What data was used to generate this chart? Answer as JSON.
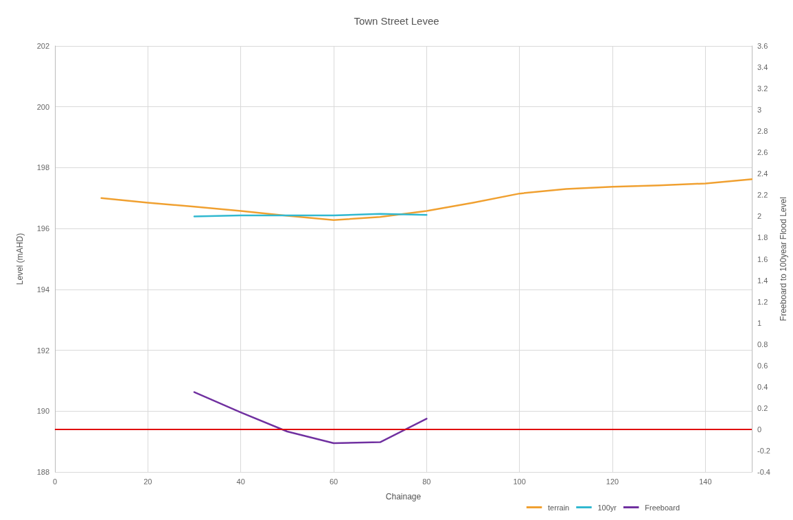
{
  "chart_data": {
    "type": "line",
    "title": "Town Street Levee",
    "xlabel": "Chainage",
    "ylabel": "Level (mAHD)",
    "y2label": "Freeboard to 100year Flood Level",
    "xlim": [
      0,
      150
    ],
    "xticks": [
      0,
      20,
      40,
      60,
      80,
      100,
      120,
      140
    ],
    "ylim": [
      188,
      202
    ],
    "yticks": [
      188,
      190,
      192,
      194,
      196,
      198,
      200,
      202
    ],
    "y2lim": [
      -0.4,
      3.6
    ],
    "y2ticks": [
      -0.4,
      -0.2,
      0,
      0.2,
      0.4,
      0.6,
      0.8,
      1,
      1.2,
      1.4,
      1.6,
      1.8,
      2,
      2.2,
      2.4,
      2.6,
      2.8,
      3,
      3.2,
      3.4,
      3.6
    ],
    "grid": true,
    "legend": "bottom right",
    "marker": "none",
    "line_style": "solid",
    "series": [
      {
        "name": "terrain",
        "color": "#f0a030",
        "x": [
          10,
          20,
          30,
          40,
          50,
          60,
          70,
          80,
          90,
          100,
          110,
          120,
          130,
          140,
          150
        ],
        "values": [
          197.0,
          196.85,
          196.72,
          196.58,
          196.42,
          196.28,
          196.38,
          196.58,
          196.85,
          197.15,
          197.3,
          197.37,
          197.42,
          197.48,
          197.62
        ]
      },
      {
        "name": "100yr",
        "color": "#30b8d0",
        "x": [
          30,
          40,
          50,
          60,
          70,
          80
        ],
        "values": [
          196.4,
          196.43,
          196.43,
          196.43,
          196.48,
          196.45
        ]
      },
      {
        "name": "Freeboard",
        "color": "#7030a0",
        "axis": "y2",
        "x": [
          30,
          40,
          50,
          60,
          70,
          80
        ],
        "values": [
          0.35,
          0.16,
          -0.02,
          -0.13,
          -0.12,
          0.1
        ]
      }
    ],
    "ref_lines": [
      {
        "axis": "y2",
        "value": 0,
        "color": "#e00000"
      }
    ]
  }
}
